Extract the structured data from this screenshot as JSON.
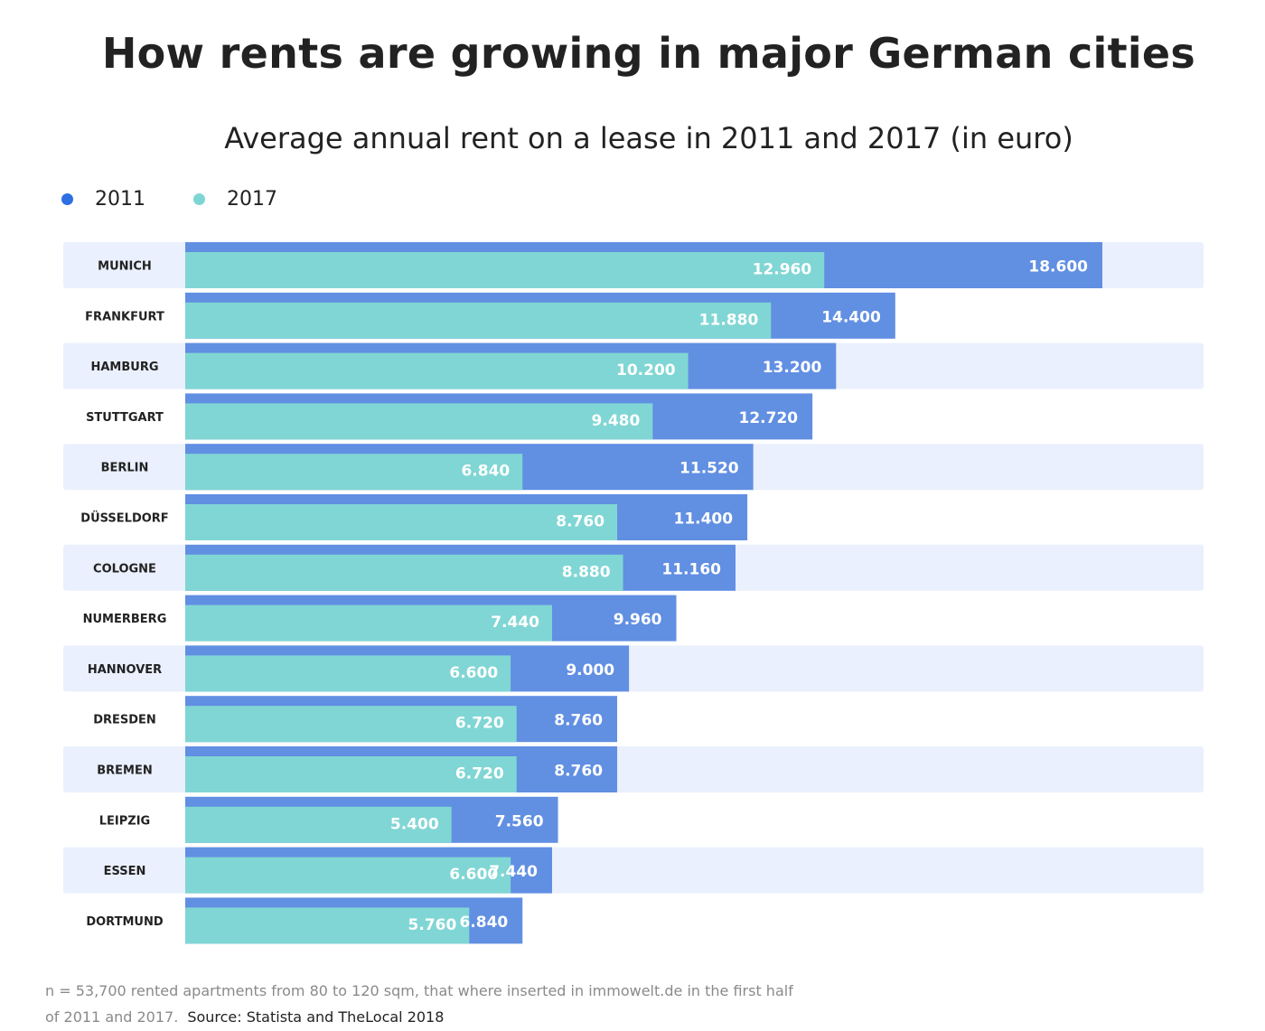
{
  "title": "How rents are growing in major German cities",
  "subtitle": "Average annual rent on a lease in 2011 and 2017 (in euro)",
  "colors": {
    "2011": "#2f6fe4",
    "2017": "#7ed6d4",
    "bar2011": "#618fe2",
    "bar2017": "#80d6d4",
    "rowbg": "#eaf0fd"
  },
  "footnote": "n = 53,700 rented apartments from 80 to 120 sqm, that where inserted in immowelt.de in the first half of 2011 and 2017.",
  "source": "Source: Statista and TheLocal 2018",
  "chart_data": {
    "type": "bar",
    "orientation": "horizontal",
    "title": "How rents are growing in major German cities",
    "subtitle": "Average annual rent on a lease in 2011 and 2017 (in euro)",
    "legend_placement": "top-left",
    "grid": false,
    "categories": [
      "MUNICH",
      "FRANKFURT",
      "HAMBURG",
      "STUTTGART",
      "BERLIN",
      "DÜSSELDORF",
      "COLOGNE",
      "NUMERBERG",
      "HANNOVER",
      "DRESDEN",
      "BREMEN",
      "LEIPZIG",
      "ESSEN",
      "DORTMUND"
    ],
    "series": [
      {
        "name": "2011",
        "values": [
          18600,
          14400,
          13200,
          12720,
          11520,
          11400,
          11160,
          9960,
          9000,
          8760,
          8760,
          7560,
          7440,
          6840
        ],
        "labels": [
          "18.600",
          "14.400",
          "13.200",
          "12.720",
          "11.520",
          "11.400",
          "11.160",
          "9.960",
          "9.000",
          "8.760",
          "8.760",
          "7.560",
          "7.440",
          "6.840"
        ]
      },
      {
        "name": "2017",
        "values": [
          12960,
          11880,
          10200,
          9480,
          6840,
          8760,
          8880,
          7440,
          6600,
          6720,
          6720,
          5400,
          6600,
          5760
        ],
        "labels": [
          "12.960",
          "11.880",
          "10.200",
          "9.480",
          "6.840",
          "8.760",
          "8.880",
          "7.440",
          "6.600",
          "6.720",
          "6.720",
          "5.400",
          "6.600",
          "5.760"
        ]
      }
    ]
  }
}
